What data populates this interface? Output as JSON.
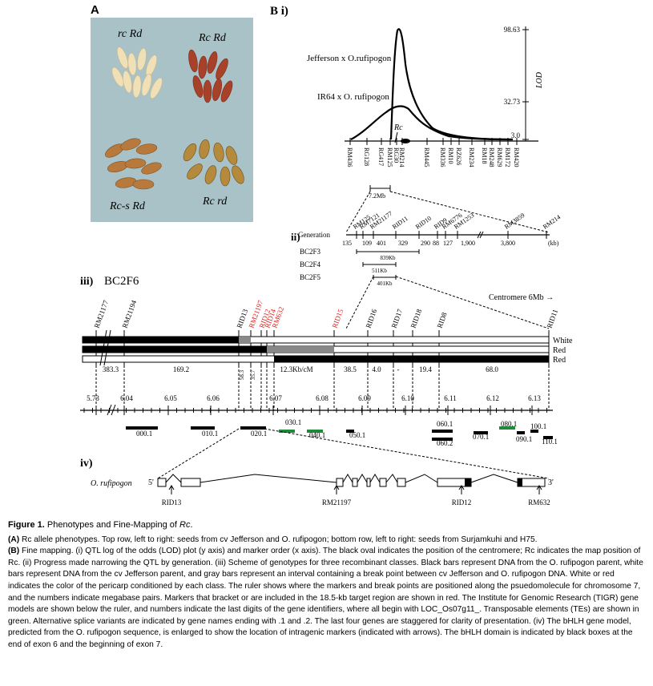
{
  "panelA": {
    "letter": "A",
    "labels": {
      "tl": "rc Rd",
      "tr": "Rc Rd",
      "bl": "Rc-s Rd",
      "br": "Rc rd"
    }
  },
  "panelB": {
    "letter": "B i)",
    "lod_axis": {
      "title": "LOD",
      "ticks": [
        "98.63",
        "32.73",
        "3.0"
      ]
    },
    "curve_labels": {
      "jefferson": "Jefferson x O.rufipogon",
      "ir64": "IR64 x O. rufipogon"
    },
    "rc_label": "Rc",
    "markers_i": [
      "RM436",
      "RG128",
      "RG417",
      "RM125",
      "RG30",
      "RM214",
      "RM445",
      "RM336",
      "RM10",
      "RZ626",
      "RM234",
      "RM18",
      "RM248",
      "RM629",
      "RM172",
      "RM420"
    ],
    "interval_i": "7.2Mb",
    "ii_label": "ii)",
    "ii_markers": [
      "RM125",
      "RM7121",
      "RM21177",
      "RID11",
      "RID10",
      "RID9",
      "RM6776",
      "RM1253",
      "RM3859",
      "RM214"
    ],
    "ii_row_label": "Generation",
    "ii_generations": [
      "BC2F3",
      "BC2F4",
      "BC2F5"
    ],
    "ii_distances": [
      "135",
      "109",
      "401",
      "329",
      "290",
      "88",
      "127",
      "1,900",
      "3,800",
      "(kb)"
    ],
    "ii_intervals": [
      "839Kb",
      "511Kb",
      "401Kb"
    ],
    "iii_label": "iii)",
    "iii_gen": "BC2F6",
    "centromere": "Centromere 6Mb →",
    "iii_markers_black": [
      "RM21177",
      "RM21194",
      "RID13",
      "RID16",
      "RID17",
      "RID18",
      "RID8",
      "RID11"
    ],
    "iii_markers_red": [
      "RM21197",
      "RID12",
      "RID14",
      "RM632",
      "RID15"
    ],
    "genotype_colors": [
      "White",
      "Red",
      "Red"
    ],
    "iii_rates": [
      "383.3",
      "169.2",
      "58.3",
      "35.7",
      "12.3Kb/cM",
      "38.5",
      "4.0",
      "-",
      "19.4",
      "68.0"
    ],
    "ruler": [
      "5.73",
      "6.04",
      "6.05",
      "6.06",
      "6.07",
      "6.08",
      "6.09",
      "6.10",
      "6.11",
      "6.12",
      "6.13"
    ],
    "genes": [
      "000.1",
      "010.1",
      "020.1",
      "030.1",
      "040.1",
      "050.1",
      "060.1",
      "060.2",
      "070.1",
      "080.1",
      "090.1",
      "100.1",
      "110.1"
    ],
    "iv_label": "iv)",
    "iv_species": "O. rufipogon",
    "iv_ends": [
      "5'",
      "3'"
    ],
    "iv_markers": [
      "RID13",
      "RM21197",
      "RID12",
      "RM632"
    ],
    "colors": {
      "red": "#e0201c",
      "te_green": "#1f8a3a",
      "photo_bg": "#a9c2c8"
    }
  },
  "caption": {
    "title_prefix": "Figure 1.",
    "title_body": "Phenotypes and Fine-Mapping of ",
    "title_italic": "Rc",
    "title_end": ".",
    "a_prefix": "(A)",
    "a_text": " Rc allele phenotypes. Top row, left to right: seeds from cv Jefferson and O. rufipogon; bottom row, left to right: seeds from Surjamkuhi and H75.",
    "b_prefix": "(B)",
    "b_text": " Fine mapping. (i) QTL log of the odds (LOD) plot (y axis) and marker order (x axis). The black oval indicates the position of the centromere; Rc indicates the map position of Rc. (ii) Progress made narrowing the QTL by generation. (iii) Scheme of genotypes for three recombinant classes. Black bars represent DNA from the O. rufipogon parent, white bars represent DNA from the cv Jefferson parent, and gray bars represent an interval containing a break point between cv Jefferson and O. rufipogon DNA. White or red indicates the color of the pericarp conditioned by each class. The ruler shows where the markers and break points are positioned along the psuedomolecule for chromosome 7, and the numbers indicate megabase pairs. Markers that bracket or are included in the 18.5-kb target region are shown in red. The Institute for Genomic Research (TIGR) gene models are shown below the ruler, and numbers indicate the last digits of the gene identifiers, where all begin with LOC_Os07g11_. Transposable elements (TEs) are shown in green. Alternative splice variants are indicated by gene names ending with .1 and .2. The last four genes are staggered for clarity of presentation. (iv) The bHLH gene model, predicted from the O. rufipogon sequence, is enlarged to show the location of intragenic markers (indicated with arrows). The bHLH domain is indicated by black boxes at the end of exon 6 and the beginning of exon 7."
  }
}
